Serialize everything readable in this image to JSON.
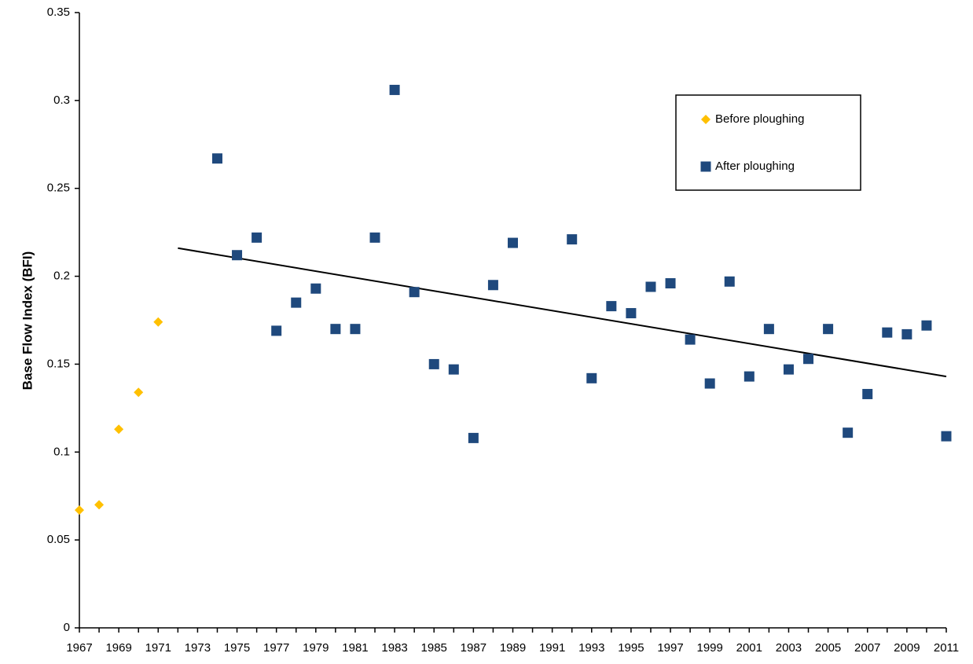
{
  "chart_data": {
    "type": "scatter",
    "y_label": "Base Flow Index (BFI)",
    "series": [
      {
        "name": "Before ploughing",
        "color": "#FFC000",
        "marker": "diamond",
        "x": [
          1967,
          1968,
          1969,
          1970,
          1971
        ],
        "values": [
          0.067,
          0.07,
          0.113,
          0.134,
          0.174
        ]
      },
      {
        "name": "After ploughing",
        "color": "#1F497D",
        "marker": "square",
        "x": [
          1974,
          1975,
          1976,
          1977,
          1978,
          1979,
          1980,
          1981,
          1982,
          1983,
          1984,
          1985,
          1986,
          1987,
          1988,
          1989,
          1992,
          1993,
          1994,
          1995,
          1996,
          1997,
          1998,
          1999,
          2000,
          2001,
          2002,
          2003,
          2004,
          2005,
          2006,
          2007,
          2008,
          2009,
          2010,
          2011
        ],
        "values": [
          0.267,
          0.212,
          0.222,
          0.169,
          0.185,
          0.193,
          0.17,
          0.17,
          0.222,
          0.306,
          0.191,
          0.15,
          0.147,
          0.108,
          0.195,
          0.219,
          0.221,
          0.142,
          0.183,
          0.179,
          0.194,
          0.196,
          0.164,
          0.139,
          0.197,
          0.143,
          0.17,
          0.147,
          0.153,
          0.17,
          0.111,
          0.133,
          0.168,
          0.167,
          0.172,
          0.109
        ]
      }
    ],
    "trendline": {
      "color": "#000000",
      "x": [
        1972,
        2011
      ],
      "values": [
        0.216,
        0.143
      ]
    },
    "xlim": [
      1967,
      2011
    ],
    "xticks": [
      1967,
      1969,
      1971,
      1973,
      1975,
      1977,
      1979,
      1981,
      1983,
      1985,
      1987,
      1989,
      1991,
      1993,
      1995,
      1997,
      1999,
      2001,
      2003,
      2005,
      2007,
      2009,
      2011
    ],
    "ylim": [
      0,
      0.35
    ],
    "yticks": [
      0,
      0.05,
      0.1,
      0.15,
      0.2,
      0.25,
      0.3,
      0.35
    ],
    "grid": false,
    "legend": "upper-right"
  }
}
